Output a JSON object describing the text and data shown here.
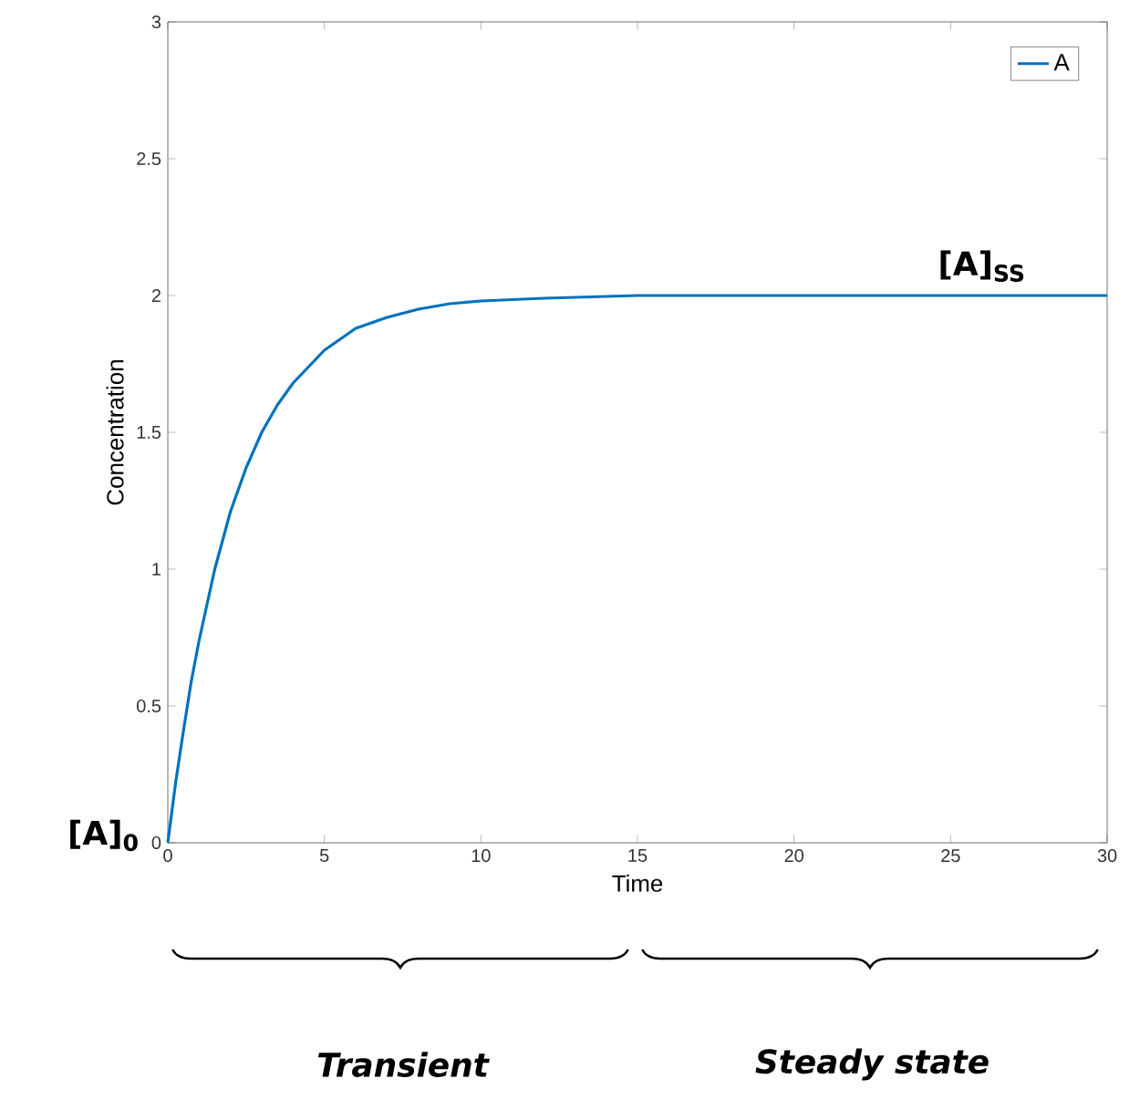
{
  "chart_data": {
    "type": "line",
    "xlabel": "Time",
    "ylabel": "Concentration",
    "x": [
      0,
      0.25,
      0.5,
      0.75,
      1,
      1.5,
      2,
      2.5,
      3,
      3.5,
      4,
      5,
      6,
      7,
      8,
      9,
      10,
      12,
      15,
      20,
      25,
      30
    ],
    "series": [
      {
        "name": "A",
        "color": "#0072bd",
        "values": [
          0,
          0.22,
          0.41,
          0.59,
          0.74,
          1.0,
          1.21,
          1.37,
          1.5,
          1.6,
          1.68,
          1.8,
          1.88,
          1.92,
          1.95,
          1.97,
          1.98,
          1.99,
          2.0,
          2.0,
          2.0,
          2.0
        ]
      }
    ],
    "xlim": [
      0,
      30
    ],
    "ylim": [
      0,
      3
    ],
    "xticks": [
      0,
      5,
      10,
      15,
      20,
      25,
      30
    ],
    "yticks": [
      0,
      0.5,
      1,
      1.5,
      2,
      2.5,
      3
    ],
    "legend": "top right",
    "grid": false,
    "marker": "none",
    "line_style": "solid",
    "annotations": [
      {
        "text": "[A]$_{0}$",
        "x": 0,
        "y": 0
      },
      {
        "text": "[A]$_{SS}$",
        "x": 26,
        "y": 2
      },
      "Transient",
      "Steady state"
    ]
  }
}
